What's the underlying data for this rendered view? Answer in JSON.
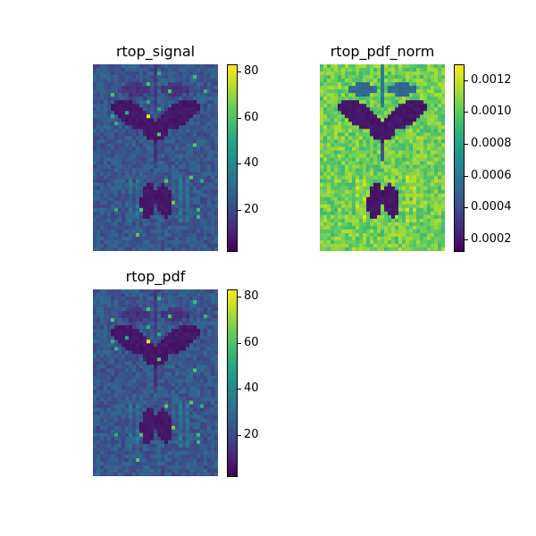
{
  "chart_data": [
    {
      "type": "heatmap",
      "title": "rtop_signal",
      "colormap": "viridis",
      "grid_size": [
        35,
        52
      ],
      "colorbar": {
        "vmin": 2,
        "vmax": 83,
        "ticks": [
          20,
          40,
          60,
          80
        ],
        "tick_labels": [
          "20",
          "40",
          "60",
          "80"
        ]
      },
      "background_level": 25,
      "description": "Axial brain slice; dark lateral ventricles (butterfly shape) upper center, dark paired structure lower center, bright outlier pixel (~83) at center near ventricles"
    },
    {
      "type": "heatmap",
      "title": "rtop_pdf_norm",
      "colormap": "viridis",
      "grid_size": [
        35,
        52
      ],
      "colorbar": {
        "vmin": 0.00012,
        "vmax": 0.0013,
        "ticks": [
          0.0002,
          0.0004,
          0.0006,
          0.0008,
          0.001,
          0.0012
        ],
        "tick_labels": [
          "0.0002",
          "0.0004",
          "0.0006",
          "0.0008",
          "0.0010",
          "0.0012"
        ]
      },
      "background_level": 0.00105,
      "description": "Same slice normalized; background mostly green-yellow, ventricles dark purple"
    },
    {
      "type": "heatmap",
      "title": "rtop_pdf",
      "colormap": "viridis",
      "grid_size": [
        35,
        52
      ],
      "colorbar": {
        "vmin": 2,
        "vmax": 83,
        "ticks": [
          20,
          40,
          60,
          80
        ],
        "tick_labels": [
          "20",
          "40",
          "60",
          "80"
        ]
      },
      "background_level": 25,
      "description": "Nearly identical to rtop_signal"
    }
  ],
  "panels": [
    {
      "title": "rtop_signal",
      "ticks": [
        "80",
        "60",
        "40",
        "20"
      ]
    },
    {
      "title": "rtop_pdf_norm",
      "ticks": [
        "0.0012",
        "0.0010",
        "0.0008",
        "0.0006",
        "0.0004",
        "0.0002"
      ]
    },
    {
      "title": "rtop_pdf",
      "ticks": [
        "80",
        "60",
        "40",
        "20"
      ]
    }
  ]
}
